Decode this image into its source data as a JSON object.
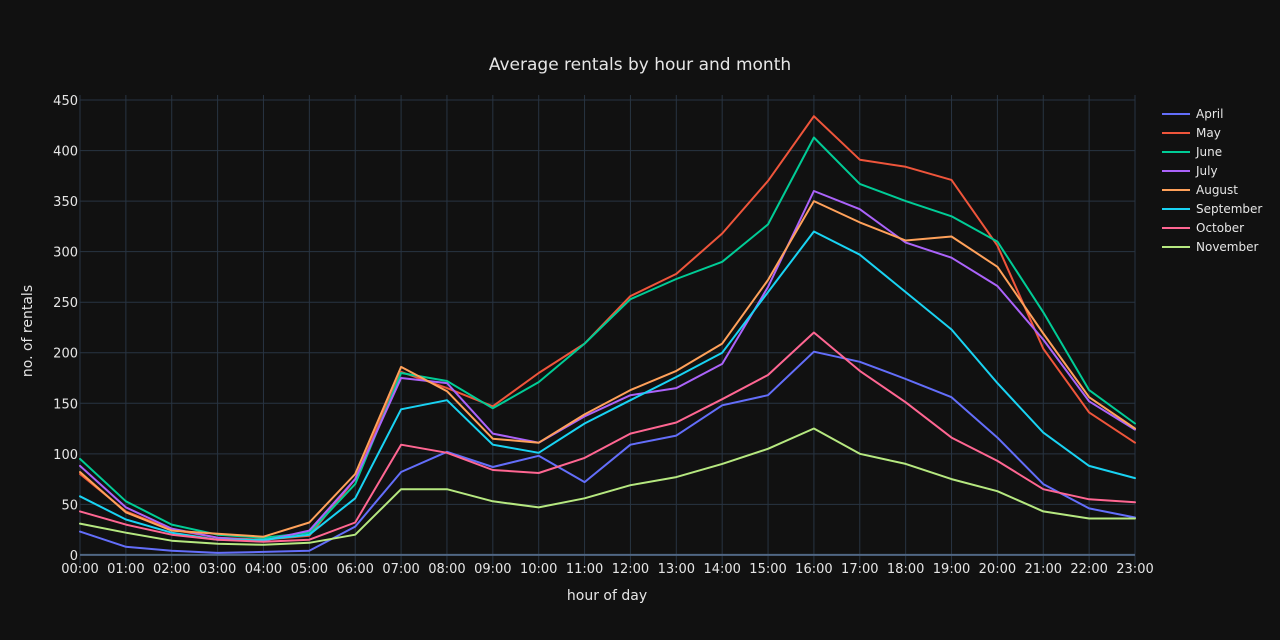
{
  "chart_data": {
    "type": "line",
    "title": "Average rentals by hour and month",
    "xlabel": "hour of day",
    "ylabel": "no. of rentals",
    "ylim": [
      -10,
      455
    ],
    "yticks": [
      0,
      50,
      100,
      150,
      200,
      250,
      300,
      350,
      400,
      450
    ],
    "grid": true,
    "legend_position": "top-right",
    "x": [
      "00:00",
      "01:00",
      "02:00",
      "03:00",
      "04:00",
      "05:00",
      "06:00",
      "07:00",
      "08:00",
      "09:00",
      "10:00",
      "11:00",
      "12:00",
      "13:00",
      "14:00",
      "15:00",
      "16:00",
      "17:00",
      "18:00",
      "19:00",
      "20:00",
      "21:00",
      "22:00",
      "23:00"
    ],
    "series": [
      {
        "name": "April",
        "color": "#636efa",
        "values": [
          23,
          8,
          4,
          2,
          3,
          4,
          28,
          82,
          102,
          87,
          98,
          72,
          109,
          118,
          148,
          158,
          201,
          191,
          174,
          156,
          116,
          70,
          46,
          37
        ]
      },
      {
        "name": "May",
        "color": "#ef553b",
        "values": [
          80,
          43,
          25,
          17,
          15,
          19,
          75,
          181,
          165,
          147,
          180,
          209,
          256,
          278,
          318,
          370,
          434,
          391,
          384,
          371,
          306,
          204,
          141,
          111
        ]
      },
      {
        "name": "June",
        "color": "#00cc96",
        "values": [
          95,
          53,
          30,
          20,
          17,
          22,
          70,
          180,
          172,
          145,
          171,
          209,
          253,
          273,
          290,
          327,
          413,
          367,
          350,
          335,
          310,
          240,
          163,
          130
        ]
      },
      {
        "name": "July",
        "color": "#ab63fa",
        "values": [
          88,
          47,
          26,
          17,
          14,
          24,
          75,
          175,
          170,
          120,
          111,
          137,
          158,
          165,
          189,
          265,
          360,
          342,
          309,
          294,
          266,
          213,
          152,
          124
        ]
      },
      {
        "name": "August",
        "color": "#ffa15a",
        "values": [
          82,
          42,
          24,
          21,
          18,
          32,
          80,
          186,
          162,
          115,
          111,
          139,
          163,
          182,
          209,
          272,
          350,
          329,
          311,
          315,
          285,
          219,
          156,
          125
        ]
      },
      {
        "name": "September",
        "color": "#19d3f3",
        "values": [
          58,
          35,
          22,
          15,
          15,
          20,
          56,
          144,
          153,
          109,
          101,
          130,
          153,
          176,
          200,
          260,
          320,
          297,
          260,
          223,
          170,
          121,
          88,
          76
        ]
      },
      {
        "name": "October",
        "color": "#ff6692",
        "values": [
          43,
          30,
          20,
          15,
          13,
          15,
          32,
          109,
          101,
          84,
          81,
          96,
          120,
          131,
          154,
          178,
          220,
          182,
          151,
          116,
          93,
          65,
          55,
          52
        ]
      },
      {
        "name": "November",
        "color": "#b6e880",
        "values": [
          31,
          22,
          14,
          11,
          10,
          12,
          20,
          65,
          65,
          53,
          47,
          56,
          69,
          77,
          90,
          105,
          125,
          100,
          90,
          75,
          63,
          43,
          36,
          36
        ]
      }
    ]
  }
}
